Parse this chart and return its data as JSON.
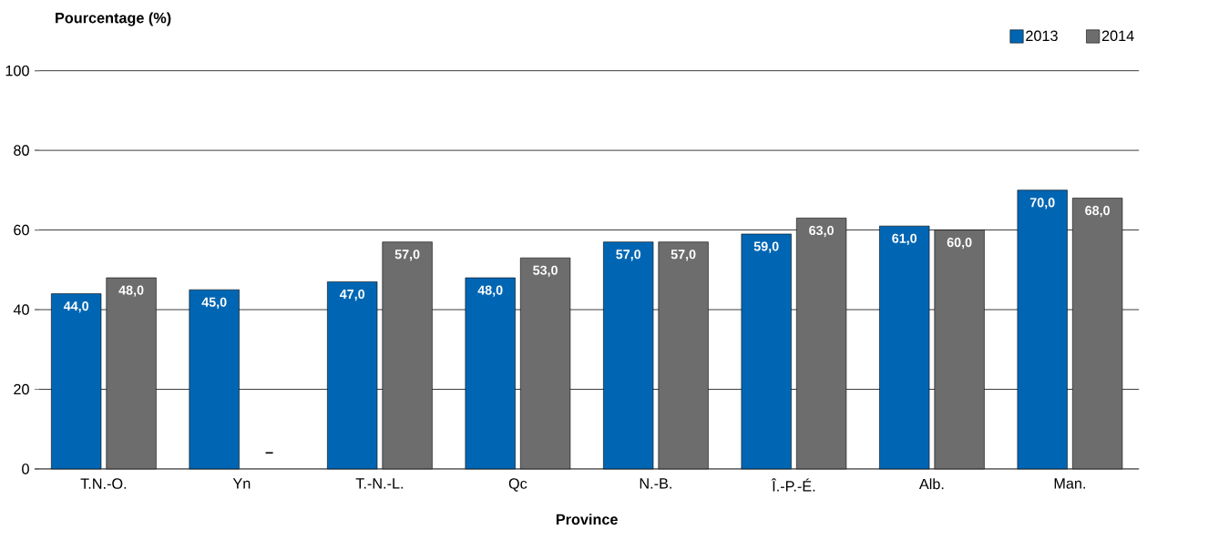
{
  "chart_data": {
    "type": "bar",
    "xlabel": "Province",
    "ylabel": "Pourcentage (%)",
    "categories": [
      "T.N.-O.",
      "Yn",
      "T.-N.-L.",
      "Qc",
      "N.-B.",
      "Î.-P.-É.",
      "Alb.",
      "Man."
    ],
    "series": [
      {
        "name": "2013",
        "color": "#0066b3",
        "values": [
          44,
          45,
          47,
          48,
          57,
          59,
          61,
          70
        ],
        "value_labels": [
          "44,0",
          "45,0",
          "47,0",
          "48,0",
          "57,0",
          "59,0",
          "61,0",
          "70,0"
        ]
      },
      {
        "name": "2014",
        "color": "#6d6d6d",
        "values": [
          48,
          null,
          57,
          53,
          57,
          63,
          60,
          68
        ],
        "value_labels": [
          "48,0",
          "–",
          "57,0",
          "53,0",
          "57,0",
          "63,0",
          "60,0",
          "68,0"
        ]
      }
    ],
    "ylim": [
      0,
      100
    ],
    "yticks": [
      0,
      20,
      40,
      60,
      80,
      100
    ],
    "grid": "y",
    "legend": "top right"
  }
}
